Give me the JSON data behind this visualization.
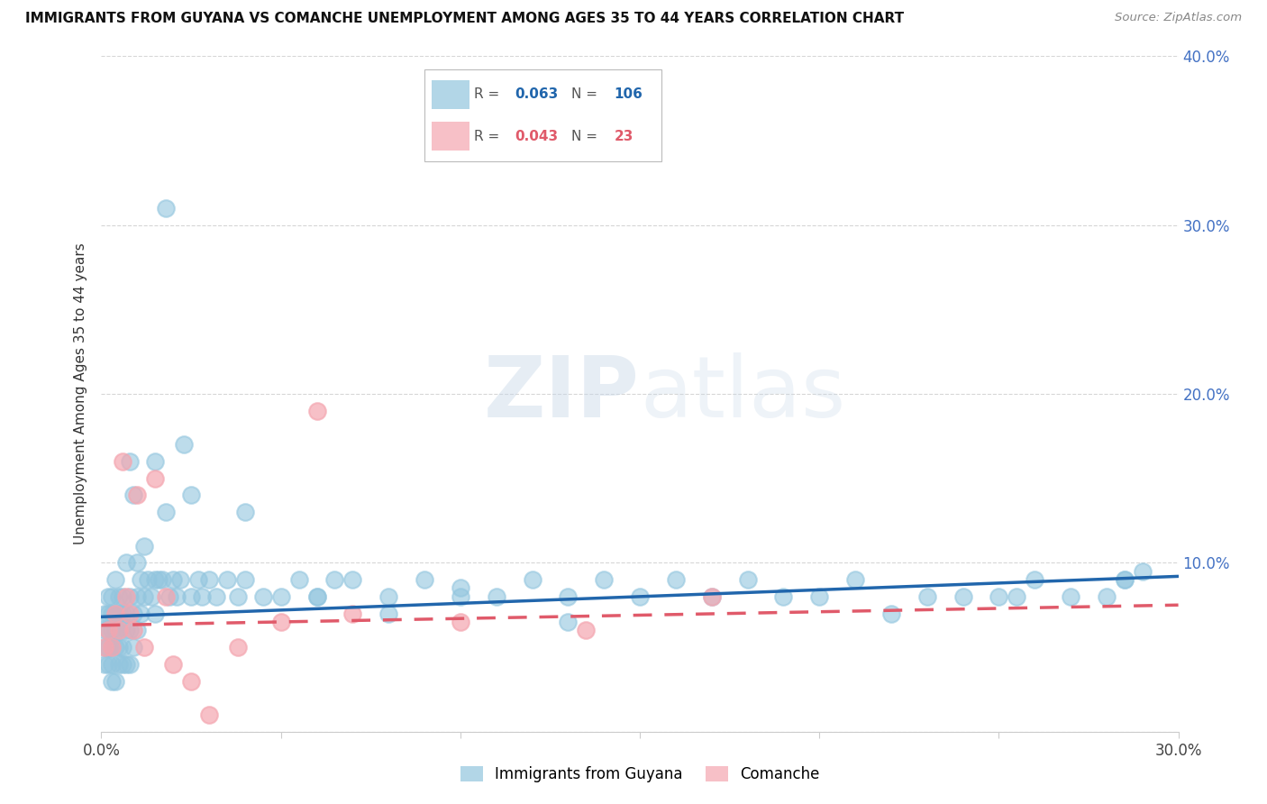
{
  "title": "IMMIGRANTS FROM GUYANA VS COMANCHE UNEMPLOYMENT AMONG AGES 35 TO 44 YEARS CORRELATION CHART",
  "source": "Source: ZipAtlas.com",
  "ylabel": "Unemployment Among Ages 35 to 44 years",
  "xlim": [
    0.0,
    0.3
  ],
  "ylim": [
    0.0,
    0.4
  ],
  "legend1_label": "Immigrants from Guyana",
  "legend2_label": "Comanche",
  "R1": "0.063",
  "N1": "106",
  "R2": "0.043",
  "N2": "23",
  "series1_color": "#92c5de",
  "series2_color": "#f4a6b0",
  "line1_color": "#2166ac",
  "line2_color": "#e05a6a",
  "tick_color": "#4472c4",
  "watermark_color": "#dde8f0",
  "background_color": "#ffffff",
  "grid_color": "#cccccc",
  "s1_x": [
    0.001,
    0.001,
    0.001,
    0.001,
    0.002,
    0.002,
    0.002,
    0.002,
    0.002,
    0.003,
    0.003,
    0.003,
    0.003,
    0.003,
    0.003,
    0.004,
    0.004,
    0.004,
    0.004,
    0.004,
    0.005,
    0.005,
    0.005,
    0.005,
    0.005,
    0.006,
    0.006,
    0.006,
    0.006,
    0.007,
    0.007,
    0.007,
    0.007,
    0.008,
    0.008,
    0.008,
    0.008,
    0.009,
    0.009,
    0.009,
    0.01,
    0.01,
    0.01,
    0.011,
    0.011,
    0.012,
    0.012,
    0.013,
    0.014,
    0.015,
    0.015,
    0.016,
    0.017,
    0.018,
    0.019,
    0.02,
    0.021,
    0.022,
    0.023,
    0.025,
    0.027,
    0.028,
    0.03,
    0.032,
    0.035,
    0.038,
    0.04,
    0.045,
    0.05,
    0.055,
    0.06,
    0.065,
    0.07,
    0.08,
    0.09,
    0.1,
    0.11,
    0.12,
    0.13,
    0.14,
    0.15,
    0.16,
    0.17,
    0.18,
    0.19,
    0.2,
    0.21,
    0.22,
    0.23,
    0.24,
    0.25,
    0.255,
    0.26,
    0.27,
    0.28,
    0.285,
    0.29,
    0.018,
    0.015,
    0.025,
    0.04,
    0.06,
    0.08,
    0.1,
    0.13,
    0.285
  ],
  "s1_y": [
    0.04,
    0.05,
    0.06,
    0.07,
    0.04,
    0.05,
    0.06,
    0.07,
    0.08,
    0.03,
    0.04,
    0.05,
    0.06,
    0.07,
    0.08,
    0.03,
    0.05,
    0.06,
    0.07,
    0.09,
    0.04,
    0.05,
    0.06,
    0.07,
    0.08,
    0.04,
    0.05,
    0.07,
    0.08,
    0.04,
    0.06,
    0.07,
    0.1,
    0.04,
    0.06,
    0.08,
    0.16,
    0.05,
    0.07,
    0.14,
    0.06,
    0.08,
    0.1,
    0.07,
    0.09,
    0.08,
    0.11,
    0.09,
    0.08,
    0.07,
    0.09,
    0.09,
    0.09,
    0.31,
    0.08,
    0.09,
    0.08,
    0.09,
    0.17,
    0.08,
    0.09,
    0.08,
    0.09,
    0.08,
    0.09,
    0.08,
    0.09,
    0.08,
    0.08,
    0.09,
    0.08,
    0.09,
    0.09,
    0.08,
    0.09,
    0.08,
    0.08,
    0.09,
    0.08,
    0.09,
    0.08,
    0.09,
    0.08,
    0.09,
    0.08,
    0.08,
    0.09,
    0.07,
    0.08,
    0.08,
    0.08,
    0.08,
    0.09,
    0.08,
    0.08,
    0.09,
    0.095,
    0.13,
    0.16,
    0.14,
    0.13,
    0.08,
    0.07,
    0.085,
    0.065,
    0.09
  ],
  "s2_x": [
    0.001,
    0.002,
    0.003,
    0.004,
    0.005,
    0.006,
    0.007,
    0.008,
    0.009,
    0.01,
    0.012,
    0.015,
    0.018,
    0.02,
    0.025,
    0.03,
    0.038,
    0.05,
    0.06,
    0.07,
    0.1,
    0.135,
    0.17
  ],
  "s2_y": [
    0.05,
    0.06,
    0.05,
    0.07,
    0.06,
    0.16,
    0.08,
    0.07,
    0.06,
    0.14,
    0.05,
    0.15,
    0.08,
    0.04,
    0.03,
    0.01,
    0.05,
    0.065,
    0.19,
    0.07,
    0.065,
    0.06,
    0.08
  ],
  "line1_x0": 0.0,
  "line1_y0": 0.068,
  "line1_x1": 0.3,
  "line1_y1": 0.092,
  "line2_x0": 0.0,
  "line2_y0": 0.063,
  "line2_x1": 0.3,
  "line2_y1": 0.075
}
